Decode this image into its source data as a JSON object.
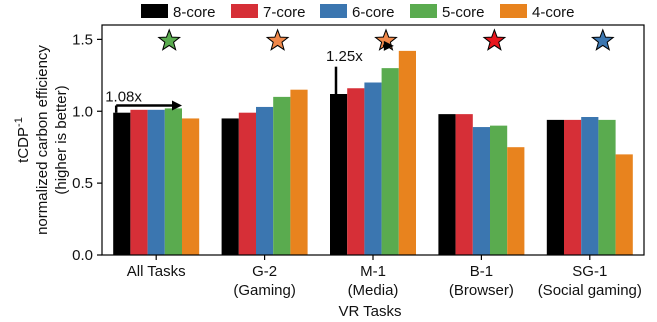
{
  "chart_data": {
    "type": "bar",
    "categories": [
      {
        "name": "All Tasks",
        "sub": ""
      },
      {
        "name": "G-2",
        "sub": "(Gaming)"
      },
      {
        "name": "M-1",
        "sub": "(Media)"
      },
      {
        "name": "B-1",
        "sub": "(Browser)"
      },
      {
        "name": "SG-1",
        "sub": "(Social gaming)"
      }
    ],
    "series": [
      {
        "name": "8-core",
        "color": "#000000",
        "values": [
          0.99,
          0.95,
          1.12,
          0.98,
          0.94
        ]
      },
      {
        "name": "7-core",
        "color": "#d62f37",
        "values": [
          1.01,
          0.99,
          1.16,
          0.98,
          0.94
        ]
      },
      {
        "name": "6-core",
        "color": "#3b76b0",
        "values": [
          1.01,
          1.03,
          1.2,
          0.89,
          0.96
        ]
      },
      {
        "name": "5-core",
        "color": "#5aab4f",
        "values": [
          1.02,
          1.1,
          1.3,
          0.9,
          0.94
        ]
      },
      {
        "name": "4-core",
        "color": "#e8831e",
        "values": [
          0.95,
          1.15,
          1.42,
          0.75,
          0.7
        ]
      }
    ],
    "ylabel_lines": [
      "tCDP",
      "normalized carbon efficiency",
      "(higher is better)"
    ],
    "ylabel_superscript": "-1",
    "xlabel": "VR Tasks",
    "ylim": [
      0.0,
      1.6
    ],
    "yticks": [
      "0.0",
      "0.5",
      "1.0",
      "1.5"
    ],
    "ytick_values": [
      0.0,
      0.5,
      1.0,
      1.5
    ],
    "grid": false,
    "legend_position": "top",
    "stars": [
      {
        "category_index": 0,
        "color": "#5aab4f"
      },
      {
        "category_index": 1,
        "color": "#f0884a"
      },
      {
        "category_index": 2,
        "color": "#f0884a"
      },
      {
        "category_index": 3,
        "color": "#e8151c"
      },
      {
        "category_index": 4,
        "color": "#3b76b0"
      }
    ],
    "star_value": 1.49,
    "annotations": [
      {
        "text": "1.08x",
        "category_index": 0
      },
      {
        "text": "1.25x",
        "category_index": 2
      }
    ]
  }
}
